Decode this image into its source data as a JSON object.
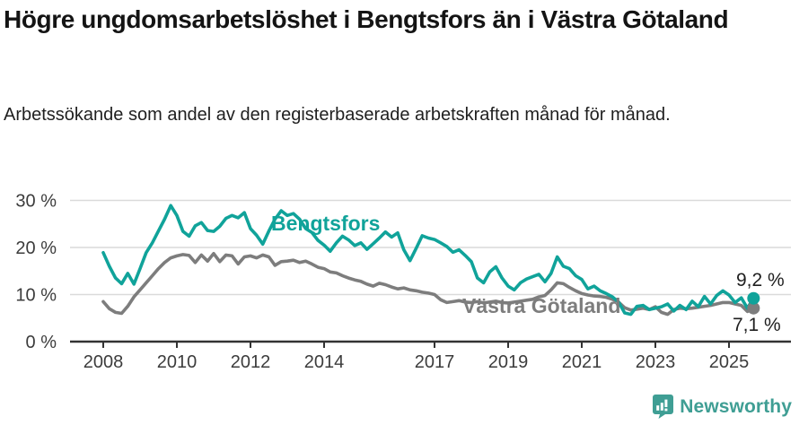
{
  "chart_data": {
    "type": "line",
    "title": "Högre ungdomsarbetslöshet i Bengtsfors än i Västra Götaland",
    "subtitle": "Arbetssökande som andel av den registerbaserade arbetskraften månad för månad.",
    "x_start_year": 2008,
    "x_step_months": 2,
    "x_range": [
      2008.0,
      2025.67
    ],
    "ylim": [
      0,
      32
    ],
    "grid": "horizontal",
    "legend_position": "inline-labels",
    "yticks": [
      {
        "v": 0,
        "label": "0 %"
      },
      {
        "v": 10,
        "label": "10 %"
      },
      {
        "v": 20,
        "label": "20 %"
      },
      {
        "v": 30,
        "label": "30 %"
      }
    ],
    "xticks": [
      {
        "v": 2008,
        "label": "2008"
      },
      {
        "v": 2010,
        "label": "2010"
      },
      {
        "v": 2012,
        "label": "2012"
      },
      {
        "v": 2014,
        "label": "2014"
      },
      {
        "v": 2017,
        "label": "2017"
      },
      {
        "v": 2019,
        "label": "2019"
      },
      {
        "v": 2021,
        "label": "2021"
      },
      {
        "v": 2023,
        "label": "2023"
      },
      {
        "v": 2025,
        "label": "2025"
      }
    ],
    "series": [
      {
        "name": "Bengtsfors",
        "color": "#10a39a",
        "end_label": "9,2 %",
        "end_value": 9.2,
        "values": [
          18.9,
          16.0,
          13.5,
          12.3,
          14.5,
          12.2,
          15.5,
          18.9,
          21.0,
          23.5,
          26.0,
          28.9,
          26.8,
          23.4,
          22.4,
          24.6,
          25.3,
          23.6,
          23.4,
          24.5,
          26.2,
          26.8,
          26.3,
          27.4,
          24.0,
          22.6,
          20.7,
          23.5,
          26.0,
          27.8,
          26.8,
          27.2,
          26.0,
          24.0,
          23.2,
          21.5,
          20.5,
          19.2,
          21.0,
          22.4,
          21.6,
          20.4,
          21.0,
          19.6,
          20.8,
          22.0,
          23.3,
          22.2,
          23.1,
          19.5,
          17.2,
          19.8,
          22.5,
          22.0,
          21.7,
          21.0,
          20.2,
          19.0,
          19.5,
          18.3,
          17.0,
          13.5,
          12.5,
          14.8,
          15.9,
          13.5,
          11.8,
          11.0,
          12.5,
          13.3,
          13.8,
          14.3,
          12.7,
          14.5,
          18.0,
          16.0,
          15.5,
          14.0,
          13.2,
          11.2,
          11.8,
          10.8,
          10.2,
          9.5,
          8.4,
          6.1,
          5.8,
          7.5,
          7.7,
          6.8,
          7.1,
          7.4,
          8.0,
          6.5,
          7.7,
          6.8,
          8.6,
          7.4,
          9.6,
          8.0,
          9.8,
          10.8,
          9.9,
          8.3,
          9.3,
          7.1,
          9.2
        ]
      },
      {
        "name": "Västra Götaland",
        "color": "#7d7d7d",
        "end_label": "7,1 %",
        "end_value": 7.1,
        "values": [
          8.5,
          7.0,
          6.2,
          6.0,
          7.5,
          9.5,
          11.0,
          12.5,
          14.0,
          15.5,
          16.8,
          17.8,
          18.2,
          18.5,
          18.3,
          16.8,
          18.4,
          17.1,
          18.7,
          17.0,
          18.4,
          18.2,
          16.5,
          18.0,
          18.2,
          17.8,
          18.4,
          18.0,
          16.2,
          17.0,
          17.1,
          17.3,
          16.8,
          17.1,
          16.5,
          15.8,
          15.5,
          14.8,
          14.6,
          14.0,
          13.5,
          13.1,
          12.8,
          12.2,
          11.8,
          12.4,
          12.1,
          11.6,
          11.2,
          11.4,
          11.0,
          10.8,
          10.5,
          10.3,
          10.0,
          8.9,
          8.3,
          8.5,
          8.7,
          8.4,
          8.3,
          8.5,
          8.2,
          8.4,
          8.6,
          8.3,
          8.2,
          8.4,
          8.6,
          8.8,
          9.0,
          9.5,
          9.8,
          11.0,
          12.5,
          12.3,
          11.5,
          10.8,
          10.2,
          9.9,
          9.7,
          9.6,
          9.4,
          9.0,
          8.4,
          7.2,
          6.7,
          6.9,
          7.1,
          6.8,
          7.4,
          6.2,
          5.8,
          6.8,
          7.1,
          7.0,
          7.1,
          7.3,
          7.5,
          7.7,
          8.0,
          8.3,
          8.3,
          8.0,
          7.7,
          6.4,
          7.1
        ]
      }
    ]
  },
  "colors": {
    "axis": "#333333",
    "tick_label": "#3c3c3c",
    "gridline": "#dadada",
    "title": "#141414",
    "subtitle": "#1f1f1f",
    "end_label": "#1f1f1f",
    "brand_teal": "#3f9e94"
  },
  "footer": {
    "brand": "Newsworthy",
    "logo_icon": "bar-chart-speech-bubble-icon"
  }
}
